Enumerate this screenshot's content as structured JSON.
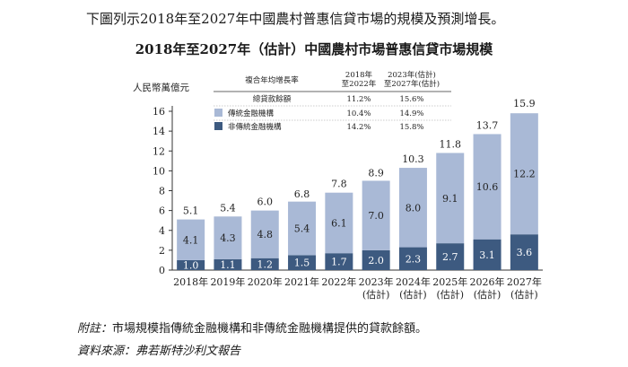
{
  "intro_text": "下圖列示2018年至2027年中國農村普惠信貸市場的規模及預測增長。",
  "chart_data": {
    "type": "bar",
    "stacked": true,
    "title": "2018年至2027年（估計）中國農村市場普惠信貸市場規模",
    "ylabel": "人民幣萬億元",
    "xlabel": "",
    "ylim": [
      0,
      16
    ],
    "yticks": [
      0,
      2,
      4,
      6,
      8,
      10,
      12,
      14,
      16
    ],
    "categories": [
      {
        "line1": "2018年",
        "line2": ""
      },
      {
        "line1": "2019年",
        "line2": ""
      },
      {
        "line1": "2020年",
        "line2": ""
      },
      {
        "line1": "2021年",
        "line2": ""
      },
      {
        "line1": "2022年",
        "line2": ""
      },
      {
        "line1": "2023年",
        "line2": "(估計)"
      },
      {
        "line1": "2024年",
        "line2": "(估計)"
      },
      {
        "line1": "2025年",
        "line2": "(估計)"
      },
      {
        "line1": "2026年",
        "line2": "(估計)"
      },
      {
        "line1": "2027年",
        "line2": "(估計)"
      }
    ],
    "series": [
      {
        "name": "非傳統金融機構",
        "color": "#3d5a80",
        "values": [
          1.0,
          1.1,
          1.2,
          1.5,
          1.7,
          2.0,
          2.3,
          2.7,
          3.1,
          3.6
        ],
        "labels": [
          "1.0",
          "1.1",
          "1.2",
          "1.5",
          "1.7",
          "2.0",
          "2.3",
          "2.7",
          "3.1",
          "3.6"
        ]
      },
      {
        "name": "傳統金融機構",
        "color": "#a9b9d6",
        "values": [
          4.1,
          4.3,
          4.8,
          5.4,
          6.1,
          7.0,
          8.0,
          9.1,
          10.6,
          12.2
        ],
        "labels": [
          "4.1",
          "4.3",
          "4.8",
          "5.4",
          "6.1",
          "7.0",
          "8.0",
          "9.1",
          "10.6",
          "12.2"
        ]
      }
    ],
    "totals": [
      5.1,
      5.4,
      6.0,
      6.8,
      7.8,
      8.9,
      10.3,
      11.8,
      13.7,
      15.9
    ],
    "total_labels": [
      "5.1",
      "5.4",
      "6.0",
      "6.8",
      "7.8",
      "8.9",
      "10.3",
      "11.8",
      "13.7",
      "15.9"
    ],
    "legend_table": {
      "header": {
        "label": "複合年均增長率",
        "col1": [
          "2018年",
          "至2022年"
        ],
        "col2": [
          "2023年(估計)",
          "至2027年(估計)"
        ]
      },
      "rows": [
        {
          "name": "總貸款餘額",
          "swatch": "",
          "v1": "11.2%",
          "v2": "15.6%"
        },
        {
          "name": "傳統金融機構",
          "swatch": "#a9b9d6",
          "v1": "10.4%",
          "v2": "14.9%"
        },
        {
          "name": "非傳統金融機構",
          "swatch": "#3d5a80",
          "v1": "14.2%",
          "v2": "15.8%"
        }
      ]
    }
  },
  "notes": {
    "remark_label": "附註：",
    "remark_text": "市場規模指傳統金融機構和非傳統金融機構提供的貸款餘額。",
    "source_label": "資料來源：",
    "source_text": "弗若斯特沙利文報告"
  }
}
